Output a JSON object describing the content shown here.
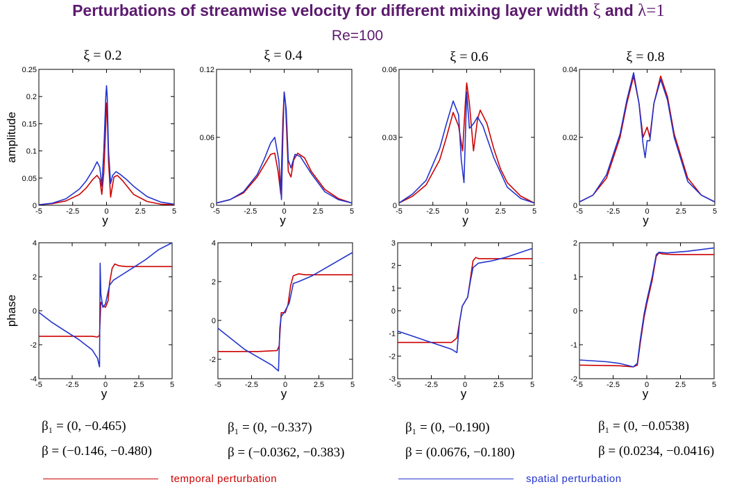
{
  "title": {
    "main_text": "Perturbations of streamwise velocity for different mixing layer width",
    "xi_symbol": "ξ",
    "and_text": "and",
    "lambda_text": "λ=1",
    "subtitle": "Re=100"
  },
  "colors": {
    "temporal": "#cc0000",
    "spatial": "#2233cc",
    "title": "#5c1a6e"
  },
  "legend": [
    {
      "label": "temporal perturbation",
      "color": "#cc0000"
    },
    {
      "label": "spatial perturbation",
      "color": "#2233cc"
    }
  ],
  "annotations": [
    {
      "beta1": "β₁ = (0, −0.465)",
      "beta": "β = (−0.146, −0.480)"
    },
    {
      "beta1": "β₁ = (0, −0.337)",
      "beta": "β = (−0.0362, −0.383)"
    },
    {
      "beta1": "β₁ = (0, −0.190)",
      "beta": "β = (0.0676, −0.180)"
    },
    {
      "beta1": "β₁ = (0, −0.0538)",
      "beta": "β = (0.0234, −0.0416)"
    }
  ],
  "chart_data": [
    {
      "type": "line",
      "title": "ξ = 0.2",
      "xlabel": "y",
      "ylabel": "amplitude",
      "xlim": [
        -5,
        5
      ],
      "ylim": [
        0,
        0.25
      ],
      "xticks": [
        "-5",
        "-2.5",
        "0",
        "2.5",
        "5"
      ],
      "yticks": [
        {
          "v": 0,
          "t": "0"
        },
        {
          "v": 0.05,
          "t": "0.05"
        },
        {
          "v": 0.1,
          "t": "0.1"
        },
        {
          "v": 0.15,
          "t": "0.15"
        },
        {
          "v": 0.2,
          "t": "0.2"
        },
        {
          "v": 0.25,
          "t": "0.25"
        }
      ],
      "series": [
        {
          "name": "temporal perturbation",
          "color": "#cc0000",
          "x": [
            -5,
            -4,
            -3,
            -2,
            -1.5,
            -1,
            -0.7,
            -0.5,
            -0.35,
            -0.2,
            -0.05,
            0,
            0.05,
            0.15,
            0.3,
            0.4,
            0.55,
            0.8,
            1.2,
            2,
            3,
            4,
            5
          ],
          "y": [
            0.001,
            0.003,
            0.008,
            0.02,
            0.032,
            0.048,
            0.055,
            0.048,
            0.02,
            0.06,
            0.15,
            0.188,
            0.17,
            0.08,
            0.015,
            0.03,
            0.052,
            0.055,
            0.045,
            0.02,
            0.007,
            0.002,
            0.001
          ]
        },
        {
          "name": "spatial perturbation",
          "color": "#2233cc",
          "x": [
            -5,
            -4,
            -3,
            -2,
            -1.5,
            -1,
            -0.7,
            -0.5,
            -0.35,
            -0.2,
            -0.05,
            0,
            0.05,
            0.15,
            0.3,
            0.45,
            0.7,
            1,
            1.5,
            2,
            3,
            4,
            5
          ],
          "y": [
            0.001,
            0.004,
            0.012,
            0.03,
            0.045,
            0.065,
            0.08,
            0.07,
            0.035,
            0.1,
            0.2,
            0.22,
            0.2,
            0.1,
            0.04,
            0.055,
            0.062,
            0.057,
            0.047,
            0.035,
            0.016,
            0.006,
            0.002
          ]
        }
      ]
    },
    {
      "type": "line",
      "title": "ξ = 0.4",
      "xlabel": "y",
      "ylabel": "",
      "xlim": [
        -5,
        5
      ],
      "ylim": [
        0,
        0.12
      ],
      "xticks": [
        "-5",
        "-2.5",
        "0",
        "2.5",
        "5"
      ],
      "yticks": [
        {
          "v": 0,
          "t": "0"
        },
        {
          "v": 0.06,
          "t": "0.06"
        },
        {
          "v": 0.12,
          "t": "0.12"
        }
      ],
      "series": [
        {
          "name": "temporal perturbation",
          "color": "#cc0000",
          "x": [
            -5,
            -4,
            -3,
            -2,
            -1.5,
            -1,
            -0.7,
            -0.45,
            -0.25,
            -0.1,
            0,
            0.1,
            0.3,
            0.5,
            0.7,
            1,
            1.5,
            2,
            3,
            4,
            5
          ],
          "y": [
            0.002,
            0.005,
            0.011,
            0.025,
            0.035,
            0.045,
            0.046,
            0.03,
            0.01,
            0.075,
            0.1,
            0.09,
            0.03,
            0.025,
            0.04,
            0.046,
            0.042,
            0.03,
            0.014,
            0.006,
            0.002
          ]
        },
        {
          "name": "spatial perturbation",
          "color": "#2233cc",
          "x": [
            -5,
            -4,
            -3,
            -2,
            -1.5,
            -1,
            -0.7,
            -0.4,
            -0.2,
            -0.1,
            0,
            0.15,
            0.3,
            0.5,
            0.8,
            1.2,
            2,
            3,
            4,
            5
          ],
          "y": [
            0.002,
            0.005,
            0.012,
            0.027,
            0.04,
            0.055,
            0.06,
            0.04,
            0.005,
            0.06,
            0.1,
            0.085,
            0.04,
            0.033,
            0.045,
            0.043,
            0.028,
            0.012,
            0.005,
            0.002
          ]
        }
      ]
    },
    {
      "type": "line",
      "title": "ξ = 0.6",
      "xlabel": "y",
      "ylabel": "",
      "xlim": [
        -5,
        5
      ],
      "ylim": [
        0,
        0.06
      ],
      "xticks": [
        "-5",
        "-2.5",
        "0",
        "2.5",
        "5"
      ],
      "yticks": [
        {
          "v": 0,
          "t": "0"
        },
        {
          "v": 0.03,
          "t": "0.03"
        },
        {
          "v": 0.06,
          "t": "0.06"
        }
      ],
      "series": [
        {
          "name": "temporal perturbation",
          "color": "#cc0000",
          "x": [
            -5,
            -4,
            -3,
            -2,
            -1.5,
            -1,
            -0.6,
            -0.3,
            -0.1,
            0,
            0.2,
            0.5,
            0.8,
            1,
            1.5,
            2,
            2.5,
            3,
            4,
            5
          ],
          "y": [
            0.001,
            0.004,
            0.009,
            0.02,
            0.03,
            0.041,
            0.035,
            0.024,
            0.045,
            0.054,
            0.045,
            0.024,
            0.038,
            0.042,
            0.036,
            0.025,
            0.016,
            0.01,
            0.004,
            0.001
          ]
        },
        {
          "name": "spatial perturbation",
          "color": "#2233cc",
          "x": [
            -5,
            -4,
            -3,
            -2,
            -1.5,
            -1,
            -0.6,
            -0.4,
            -0.2,
            0,
            0.2,
            0.5,
            0.8,
            1.2,
            2,
            3,
            4,
            5
          ],
          "y": [
            0.001,
            0.005,
            0.011,
            0.025,
            0.036,
            0.046,
            0.04,
            0.02,
            0.01,
            0.05,
            0.034,
            0.036,
            0.039,
            0.035,
            0.021,
            0.008,
            0.003,
            0.001
          ]
        }
      ]
    },
    {
      "type": "line",
      "title": "ξ = 0.8",
      "xlabel": "y",
      "ylabel": "",
      "xlim": [
        -5,
        5
      ],
      "ylim": [
        0,
        0.04
      ],
      "xticks": [
        "-5",
        "-2.5",
        "0",
        "2.5",
        "5"
      ],
      "yticks": [
        {
          "v": 0,
          "t": "0"
        },
        {
          "v": 0.02,
          "t": "0.02"
        },
        {
          "v": 0.04,
          "t": "0.04"
        }
      ],
      "series": [
        {
          "name": "temporal perturbation",
          "color": "#cc0000",
          "x": [
            -5,
            -4,
            -3,
            -2,
            -1.5,
            -1,
            -0.6,
            -0.3,
            -0.1,
            0,
            0.2,
            0.5,
            1,
            1.5,
            2,
            3,
            4,
            5
          ],
          "y": [
            0.001,
            0.003,
            0.008,
            0.02,
            0.03,
            0.038,
            0.03,
            0.02,
            0.022,
            0.023,
            0.02,
            0.03,
            0.038,
            0.032,
            0.021,
            0.008,
            0.003,
            0.001
          ]
        },
        {
          "name": "spatial perturbation",
          "color": "#2233cc",
          "x": [
            -5,
            -4,
            -3,
            -2,
            -1.5,
            -1,
            -0.6,
            -0.3,
            -0.15,
            0,
            0.2,
            0.5,
            1,
            1.5,
            2,
            3,
            4,
            5
          ],
          "y": [
            0.001,
            0.003,
            0.009,
            0.021,
            0.031,
            0.039,
            0.03,
            0.018,
            0.014,
            0.019,
            0.019,
            0.03,
            0.037,
            0.031,
            0.02,
            0.007,
            0.003,
            0.001
          ]
        }
      ]
    },
    {
      "type": "line",
      "title": "",
      "xlabel": "y",
      "ylabel": "phase",
      "xlim": [
        -5,
        5
      ],
      "ylim": [
        -4,
        4
      ],
      "xticks": [
        "-5",
        "-2.5",
        "0",
        "2.5",
        "5"
      ],
      "yticks": [
        {
          "v": -4,
          "t": "-4"
        },
        {
          "v": -2,
          "t": "-2"
        },
        {
          "v": 0,
          "t": "0"
        },
        {
          "v": 2,
          "t": "2"
        },
        {
          "v": 4,
          "t": "4"
        }
      ],
      "series": [
        {
          "name": "temporal perturbation",
          "color": "#cc0000",
          "x": [
            -5,
            -3,
            -1,
            -0.6,
            -0.45,
            -0.35,
            -0.2,
            0,
            0.2,
            0.3,
            0.5,
            0.7,
            1,
            1.5,
            5
          ],
          "y": [
            -1.5,
            -1.5,
            -1.5,
            -1.55,
            -1.45,
            0.5,
            0.3,
            0.2,
            0.6,
            1.6,
            2.5,
            2.75,
            2.65,
            2.6,
            2.6
          ]
        },
        {
          "name": "spatial perturbation",
          "color": "#2233cc",
          "x": [
            -5,
            -4,
            -3,
            -2,
            -1,
            -0.6,
            -0.45,
            -0.4,
            -0.35,
            -0.2,
            0,
            0.3,
            0.6,
            1,
            2,
            3,
            4,
            5
          ],
          "y": [
            -0.1,
            -0.7,
            -1.2,
            -1.7,
            -2.3,
            -2.8,
            -3.3,
            2.8,
            1.0,
            0.2,
            0.4,
            1.5,
            1.8,
            2.0,
            2.5,
            3.0,
            3.6,
            4.0
          ]
        }
      ]
    },
    {
      "type": "line",
      "title": "",
      "xlabel": "y",
      "ylabel": "",
      "xlim": [
        -5,
        5
      ],
      "ylim": [
        -3,
        4
      ],
      "xticks": [
        "-5",
        "-2.5",
        "0",
        "2.5",
        "5"
      ],
      "yticks": [
        {
          "v": -2,
          "t": "-2"
        },
        {
          "v": 0,
          "t": "0"
        },
        {
          "v": 2,
          "t": "2"
        },
        {
          "v": 4,
          "t": "4"
        }
      ],
      "series": [
        {
          "name": "temporal perturbation",
          "color": "#cc0000",
          "x": [
            -5,
            -2,
            -0.6,
            -0.45,
            -0.3,
            0,
            0.2,
            0.4,
            0.6,
            1,
            1.5,
            5
          ],
          "y": [
            -1.6,
            -1.6,
            -1.55,
            -1.3,
            0.4,
            0.4,
            0.8,
            1.8,
            2.3,
            2.4,
            2.35,
            2.35
          ]
        },
        {
          "name": "spatial perturbation",
          "color": "#2233cc",
          "x": [
            -5,
            -4,
            -3,
            -2,
            -1,
            -0.5,
            -0.4,
            -0.3,
            0,
            0.3,
            0.6,
            1,
            2,
            3,
            4,
            5
          ],
          "y": [
            -0.4,
            -0.95,
            -1.5,
            -1.9,
            -2.3,
            -2.6,
            -0.4,
            0.2,
            0.5,
            0.9,
            1.9,
            2.0,
            2.3,
            2.7,
            3.1,
            3.5
          ]
        }
      ]
    },
    {
      "type": "line",
      "title": "",
      "xlabel": "y",
      "ylabel": "",
      "xlim": [
        -5,
        5
      ],
      "ylim": [
        -3,
        3
      ],
      "xticks": [
        "-5",
        "-2.5",
        "0",
        "2.5",
        "5"
      ],
      "yticks": [
        {
          "v": -3,
          "t": "-3"
        },
        {
          "v": -2,
          "t": "-2"
        },
        {
          "v": -1,
          "t": "-1"
        },
        {
          "v": 0,
          "t": "0"
        },
        {
          "v": 1,
          "t": "1"
        },
        {
          "v": 2,
          "t": "2"
        },
        {
          "v": 3,
          "t": "3"
        }
      ],
      "series": [
        {
          "name": "temporal perturbation",
          "color": "#cc0000",
          "x": [
            -5,
            -3,
            -1,
            -0.6,
            -0.4,
            -0.2,
            0,
            0.2,
            0.4,
            0.6,
            0.8,
            1,
            5
          ],
          "y": [
            -1.4,
            -1.4,
            -1.4,
            -1.2,
            -0.5,
            0.2,
            0.4,
            0.6,
            1.4,
            2.2,
            2.35,
            2.3,
            2.3
          ]
        },
        {
          "name": "spatial perturbation",
          "color": "#2233cc",
          "x": [
            -5,
            -4,
            -3,
            -2,
            -1,
            -0.6,
            -0.4,
            -0.2,
            0,
            0.2,
            0.4,
            0.6,
            1,
            2,
            3,
            4,
            5
          ],
          "y": [
            -0.9,
            -1.1,
            -1.3,
            -1.5,
            -1.7,
            -1.85,
            -0.5,
            0.2,
            0.4,
            0.6,
            1.3,
            1.9,
            2.1,
            2.2,
            2.35,
            2.55,
            2.75
          ]
        }
      ]
    },
    {
      "type": "line",
      "title": "",
      "xlabel": "y",
      "ylabel": "",
      "xlim": [
        -5,
        5
      ],
      "ylim": [
        -2,
        2
      ],
      "xticks": [
        "-5",
        "-2.5",
        "0",
        "2.5",
        "5"
      ],
      "yticks": [
        {
          "v": -2,
          "t": "-2"
        },
        {
          "v": -1,
          "t": "-1"
        },
        {
          "v": 0,
          "t": "0"
        },
        {
          "v": 1,
          "t": "1"
        },
        {
          "v": 2,
          "t": "2"
        }
      ],
      "series": [
        {
          "name": "temporal perturbation",
          "color": "#cc0000",
          "x": [
            -5,
            -2,
            -1,
            -0.7,
            -0.5,
            -0.2,
            0,
            0.4,
            0.7,
            0.9,
            1.2,
            2,
            5
          ],
          "y": [
            -1.6,
            -1.62,
            -1.65,
            -1.6,
            -1.0,
            -0.2,
            0.2,
            0.9,
            1.6,
            1.7,
            1.67,
            1.65,
            1.65
          ]
        },
        {
          "name": "spatial perturbation",
          "color": "#2233cc",
          "x": [
            -5,
            -3,
            -2,
            -1,
            -0.7,
            -0.5,
            -0.2,
            0,
            0.4,
            0.7,
            0.9,
            1.5,
            3,
            5
          ],
          "y": [
            -1.45,
            -1.5,
            -1.55,
            -1.65,
            -1.55,
            -0.9,
            -0.1,
            0.3,
            1.0,
            1.65,
            1.72,
            1.7,
            1.75,
            1.85
          ]
        }
      ]
    }
  ]
}
